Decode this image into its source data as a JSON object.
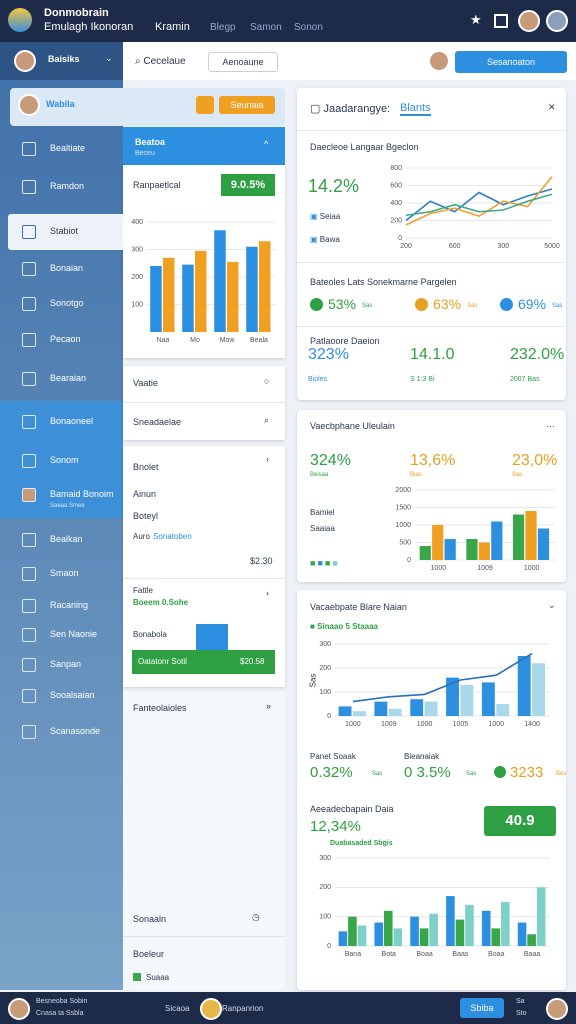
{
  "header": {
    "brand": "Donmobrain",
    "subtitle": "Emulagh Ikonoran",
    "app": "Kramin",
    "nav": [
      "Blegp",
      "Samon",
      "Sonon"
    ]
  },
  "sidebar": {
    "user": "Baisiks",
    "items": [
      "Bealtiate",
      "Ramdon",
      "Stabiot",
      "Bonaian",
      "Sonotgo",
      "Pecaon",
      "Bearaian",
      "Bonaoneel",
      "Sonom",
      "Bamaid Bonoim",
      "Bealkan",
      "Smaon",
      "Racaning",
      "Sen Naonie",
      "Sanpan",
      "Sooalsaian",
      "Scanasonde"
    ],
    "item_note": "Saeaa Smee"
  },
  "toolbar": {
    "search": "Cecelaue",
    "filter": "Aenoaune",
    "button": "Sesanoaton"
  },
  "profile_strip": {
    "name": "Wabila",
    "button": "Seunaia"
  },
  "panel": {
    "title": "Beatoa",
    "subtitle": "Beceu",
    "metric_label": "Ranpaetlcal",
    "metric_badge": "9.0.5%",
    "chart": {
      "type": "bar",
      "categories": [
        "Naa",
        "Mo",
        "Mow",
        "Beala"
      ],
      "series": [
        {
          "color": "#2d8fe0",
          "values": [
            240,
            245,
            370,
            310
          ]
        },
        {
          "color": "#f0a020",
          "values": [
            270,
            295,
            255,
            330
          ]
        }
      ],
      "ylim": [
        0,
        400
      ],
      "yticks": [
        100,
        200,
        300,
        400
      ],
      "grid": true
    }
  },
  "list": {
    "rows": [
      "Vaatie",
      "Sneadaelae"
    ]
  },
  "detail": {
    "title": "Bnolet",
    "lines": [
      "Ainun",
      "Boteyl"
    ],
    "link_label": "Auro",
    "link": "Sonatoben",
    "amount": "$2.30"
  },
  "progress": {
    "title": "Fattle",
    "subtitle": "Boeem 0.Sohe",
    "label": "Bonabola",
    "bar_label": "Oatatonr Sotil",
    "bar_value": "$20.58"
  },
  "more": {
    "title": "Fanteolaioles"
  },
  "footer_rows": [
    "Sonaaln",
    "Boeleur",
    "Suaaa"
  ],
  "analytics": {
    "tab_title": "Jaadarangye:",
    "tab_active": "Blants",
    "section": "Daecleoe Langaar Bgeclon",
    "big": "14.2%",
    "legend": [
      "Seiaa",
      "Bawa"
    ],
    "chart": {
      "type": "line",
      "categories": [
        "200",
        null,
        "600",
        null,
        "300",
        null,
        "5000"
      ],
      "series": [
        {
          "color": "#2a7fc8",
          "values": [
            200,
            420,
            300,
            520,
            380,
            480,
            560
          ]
        },
        {
          "color": "#f0a030",
          "values": [
            150,
            280,
            340,
            250,
            420,
            360,
            700
          ]
        },
        {
          "color": "#3aaa80",
          "values": [
            260,
            300,
            380,
            300,
            320,
            420,
            500
          ]
        }
      ],
      "ylim": [
        0,
        800
      ],
      "yticks": [
        0,
        200,
        400,
        600,
        800
      ],
      "grid": true
    },
    "kpi_title": "Bateoles Lats Sonekmarne Pargelen",
    "kpis": [
      "53%",
      "63%",
      "69%"
    ],
    "kpi_suffix": "Sas",
    "detail_title": "Patlaoore Daeion",
    "details": [
      {
        "value": "323%",
        "note": "Bioles"
      },
      {
        "value": "14.1.0",
        "note": "S 1:3 Bi"
      },
      {
        "value": "232.0%",
        "note": "2007 Bas"
      }
    ]
  },
  "volume": {
    "title": "Vaecbphane Uleulain",
    "kpis": [
      {
        "value": "324%",
        "note": "Beisaa"
      },
      {
        "value": "13,6%",
        "note": "Bias"
      },
      {
        "value": "23,0%",
        "note": "Sas"
      }
    ],
    "side_labels": [
      "Bamiel",
      "Saaiaa"
    ],
    "chart": {
      "type": "bar",
      "categories": [
        "1000",
        "1009",
        "1000"
      ],
      "series": [
        {
          "color": "#3aa64a",
          "values": [
            400,
            600,
            1300
          ]
        },
        {
          "color": "#f0a020",
          "values": [
            1000,
            500,
            1400
          ]
        },
        {
          "color": "#2d8fe0",
          "values": [
            600,
            1100,
            900
          ]
        }
      ],
      "ylim": [
        0,
        2000
      ],
      "yticks": [
        0,
        500,
        1000,
        1500,
        2000
      ],
      "grid": true
    }
  },
  "trend": {
    "title": "Vacaebpate Blare Naian",
    "legend": "Sinaao 5 Staaaa",
    "axis_label": "Sas",
    "chart": {
      "type": "bar",
      "categories": [
        "1000",
        "1009",
        "1000",
        "1005",
        "1000",
        "1400"
      ],
      "series": [
        {
          "color": "#2d8fe0",
          "values": [
            40,
            60,
            70,
            160,
            140,
            250
          ]
        },
        {
          "color": "#a9d8ea",
          "values": [
            20,
            30,
            60,
            130,
            50,
            220
          ]
        },
        {
          "color": "#2a6fb8",
          "type": "line",
          "values": [
            60,
            80,
            90,
            150,
            170,
            260
          ]
        }
      ],
      "ylim": [
        0,
        300
      ],
      "yticks": [
        0,
        100,
        200,
        300
      ],
      "grid": true
    },
    "kpis": [
      {
        "label": "Panet Soaak",
        "value": "0.32%",
        "note": "Sas"
      },
      {
        "label": "Bieanaiak",
        "value": "0 3.5%",
        "note": "Sas"
      },
      {
        "value": "3233",
        "note": "Bes"
      }
    ],
    "summary_title": "Aeeadecbapain Daia",
    "summary_value": "12,34%",
    "summary_badge": "40.9",
    "summary_note": "Duabasaded Sbgis",
    "chart2": {
      "type": "bar",
      "categories": [
        "Bana",
        "Bota",
        "Boaa",
        "Baas",
        "Boaa",
        "Baaa"
      ],
      "series": [
        {
          "color": "#2d8fe0",
          "values": [
            50,
            80,
            100,
            170,
            120,
            80
          ]
        },
        {
          "color": "#3aa64a",
          "values": [
            100,
            120,
            60,
            90,
            60,
            40
          ]
        },
        {
          "color": "#7fd1c8",
          "values": [
            70,
            60,
            110,
            140,
            150,
            200
          ]
        }
      ],
      "ylim": [
        0,
        300
      ],
      "yticks": [
        0,
        100,
        200,
        300
      ],
      "grid": true
    }
  },
  "bottom_bar": {
    "left": [
      "Besneoba Sobin",
      "Cnasa ta Ssbla"
    ],
    "center": "Sicaoa",
    "app": "Ranpanrion",
    "button": "Sbiba",
    "right": [
      "Sa",
      "Sto"
    ]
  }
}
